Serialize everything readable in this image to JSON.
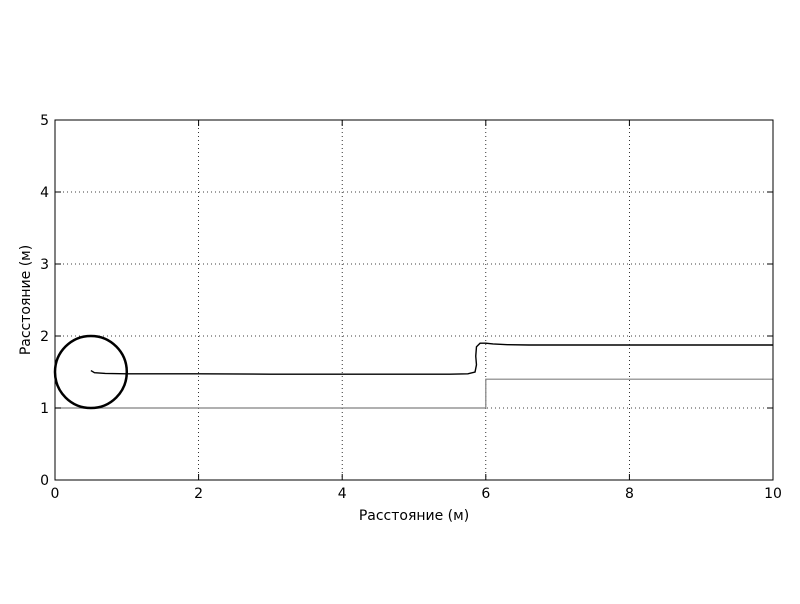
{
  "chart_data": {
    "type": "line",
    "title": "",
    "xlabel": "Расстояние (м)",
    "ylabel": "Расстояние (м)",
    "xlim": [
      0,
      10
    ],
    "ylim": [
      0,
      5
    ],
    "x_ticks": [
      0,
      2,
      4,
      6,
      8,
      10
    ],
    "y_ticks": [
      0,
      1,
      2,
      3,
      4,
      5
    ],
    "grid": true,
    "legend": "none",
    "series": [
      {
        "color": "#000000",
        "points": [
          [
            0.5,
            1.52
          ],
          [
            0.55,
            1.49
          ],
          [
            0.7,
            1.48
          ],
          [
            1.0,
            1.475
          ],
          [
            2.0,
            1.475
          ],
          [
            3.0,
            1.47
          ],
          [
            4.0,
            1.47
          ],
          [
            5.0,
            1.47
          ],
          [
            5.5,
            1.47
          ],
          [
            5.75,
            1.475
          ],
          [
            5.85,
            1.5
          ],
          [
            5.87,
            1.6
          ],
          [
            5.86,
            1.72
          ],
          [
            5.87,
            1.85
          ],
          [
            5.92,
            1.9
          ],
          [
            6.0,
            1.9
          ],
          [
            6.1,
            1.89
          ],
          [
            6.3,
            1.88
          ],
          [
            6.6,
            1.875
          ],
          [
            8.0,
            1.875
          ],
          [
            10.0,
            1.875
          ]
        ]
      },
      {
        "color": "#808080",
        "points": [
          [
            0,
            1.0
          ],
          [
            6.0,
            1.0
          ],
          [
            6.0,
            1.4
          ],
          [
            10.0,
            1.4
          ]
        ]
      }
    ],
    "circle": {
      "center": [
        0.5,
        1.5
      ],
      "radius": 0.5,
      "color": "#000000"
    }
  }
}
